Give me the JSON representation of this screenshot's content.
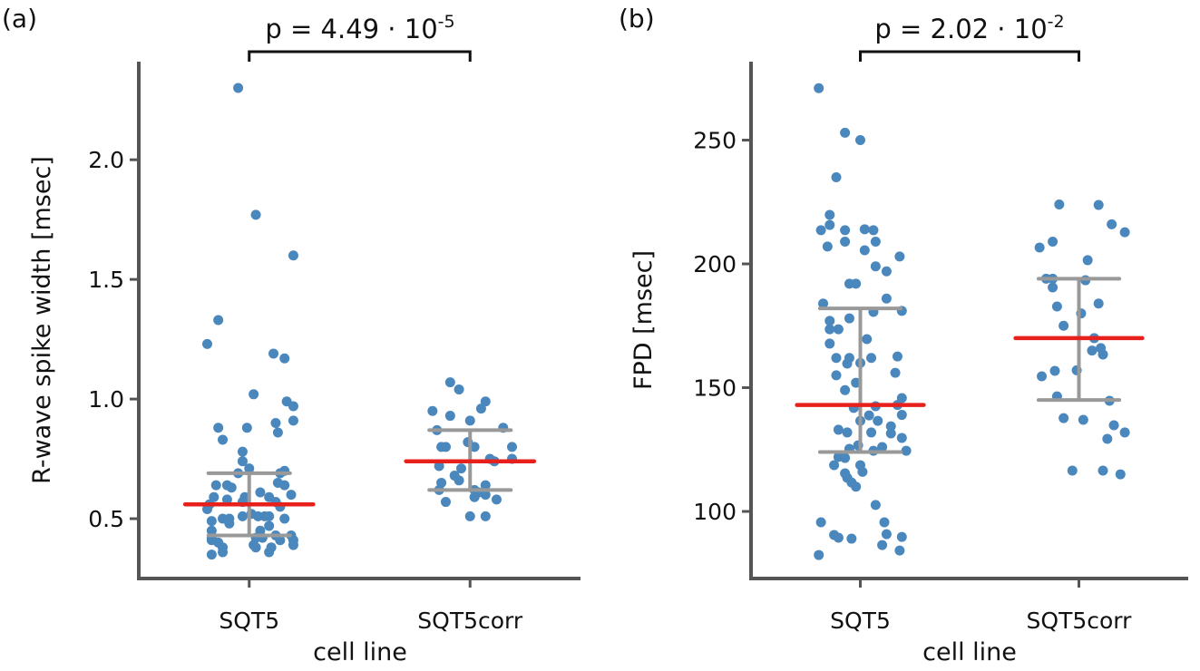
{
  "colors": {
    "points": "#4a87bd",
    "median": "#e8201c",
    "errorbar": "#999999",
    "axis": "#555555"
  },
  "chart_data": [
    {
      "type": "scatter",
      "panel_label": "(a)",
      "title": "",
      "xlabel": "cell line",
      "ylabel": "R-wave spike width [msec]",
      "categories": [
        "SQT5",
        "SQT5corr"
      ],
      "ylim": [
        0.25,
        2.41
      ],
      "yticks": [
        0.5,
        1.0,
        1.5,
        2.0
      ],
      "ytick_labels": [
        "0.5",
        "1.0",
        "1.5",
        "2.0"
      ],
      "grid": false,
      "significance": {
        "text": "p = 4.49 · 10",
        "exponent": "-5"
      },
      "summary": [
        {
          "median": 0.56,
          "lower": 0.43,
          "upper": 0.69
        },
        {
          "median": 0.74,
          "lower": 0.62,
          "upper": 0.87
        }
      ],
      "series": [
        {
          "name": "SQT5",
          "jitter_and_value": [
            [
              -0.05,
              2.3
            ],
            [
              0.03,
              1.77
            ],
            [
              0.2,
              1.6
            ],
            [
              -0.14,
              1.33
            ],
            [
              -0.19,
              1.23
            ],
            [
              0.11,
              1.19
            ],
            [
              0.16,
              1.17
            ],
            [
              0.02,
              1.02
            ],
            [
              0.17,
              0.99
            ],
            [
              0.2,
              0.97
            ],
            [
              0.2,
              0.91
            ],
            [
              0.12,
              0.9
            ],
            [
              -0.14,
              0.88
            ],
            [
              -0.01,
              0.88
            ],
            [
              0.13,
              0.86
            ],
            [
              -0.12,
              0.83
            ],
            [
              -0.03,
              0.78
            ],
            [
              -0.03,
              0.74
            ],
            [
              0,
              0.71
            ],
            [
              -0.05,
              0.69
            ],
            [
              0.16,
              0.7
            ],
            [
              0.14,
              0.69
            ],
            [
              -0.15,
              0.64
            ],
            [
              -0.1,
              0.64
            ],
            [
              -0.08,
              0.63
            ],
            [
              0.13,
              0.65
            ],
            [
              0.16,
              0.64
            ],
            [
              0.05,
              0.61
            ],
            [
              0.19,
              0.6
            ],
            [
              -0.16,
              0.59
            ],
            [
              -0.1,
              0.58
            ],
            [
              -0.02,
              0.59
            ],
            [
              -0.03,
              0.57
            ],
            [
              0.09,
              0.59
            ],
            [
              0.12,
              0.57
            ],
            [
              -0.18,
              0.56
            ],
            [
              -0.19,
              0.54
            ],
            [
              0.14,
              0.55
            ],
            [
              -0.03,
              0.51
            ],
            [
              0.01,
              0.52
            ],
            [
              0.04,
              0.51
            ],
            [
              0.07,
              0.51
            ],
            [
              0.09,
              0.51
            ],
            [
              -0.12,
              0.5
            ],
            [
              -0.09,
              0.5
            ],
            [
              0.16,
              0.5
            ],
            [
              -0.17,
              0.49
            ],
            [
              -0.09,
              0.48
            ],
            [
              0.09,
              0.47
            ],
            [
              -0.17,
              0.45
            ],
            [
              0.05,
              0.45
            ],
            [
              -0.17,
              0.42
            ],
            [
              0.03,
              0.42
            ],
            [
              0.06,
              0.42
            ],
            [
              0.12,
              0.43
            ],
            [
              0.19,
              0.43
            ],
            [
              -0.17,
              0.41
            ],
            [
              -0.14,
              0.4
            ],
            [
              0.14,
              0.41
            ],
            [
              0.2,
              0.41
            ],
            [
              -0.12,
              0.38
            ],
            [
              0.02,
              0.39
            ],
            [
              0.1,
              0.38
            ],
            [
              0.2,
              0.39
            ],
            [
              -0.12,
              0.36
            ],
            [
              -0.17,
              0.35
            ],
            [
              0.09,
              0.36
            ],
            [
              0.03,
              0.38
            ]
          ]
        },
        {
          "name": "SQT5corr",
          "jitter_and_value": [
            [
              -0.09,
              1.07
            ],
            [
              -0.05,
              1.04
            ],
            [
              0.07,
              0.99
            ],
            [
              0.05,
              0.96
            ],
            [
              -0.17,
              0.95
            ],
            [
              -0.09,
              0.93
            ],
            [
              0,
              0.91
            ],
            [
              0.15,
              0.88
            ],
            [
              -0.15,
              0.87
            ],
            [
              -0.01,
              0.82
            ],
            [
              0.02,
              0.8
            ],
            [
              -0.13,
              0.8
            ],
            [
              -0.11,
              0.8
            ],
            [
              0.19,
              0.8
            ],
            [
              0.19,
              0.75
            ],
            [
              0.09,
              0.75
            ],
            [
              0.11,
              0.74
            ],
            [
              -0.14,
              0.72
            ],
            [
              -0.04,
              0.71
            ],
            [
              -0.07,
              0.68
            ],
            [
              -0.05,
              0.66
            ],
            [
              -0.13,
              0.65
            ],
            [
              -0.14,
              0.62
            ],
            [
              0.07,
              0.64
            ],
            [
              0.02,
              0.62
            ],
            [
              0.04,
              0.61
            ],
            [
              0.07,
              0.6
            ],
            [
              0.02,
              0.59
            ],
            [
              0.12,
              0.58
            ],
            [
              -0.11,
              0.57
            ],
            [
              0,
              0.51
            ],
            [
              0.07,
              0.51
            ]
          ]
        }
      ]
    },
    {
      "type": "scatter",
      "panel_label": "(b)",
      "title": "",
      "xlabel": "cell line",
      "ylabel": "FPD [msec]",
      "categories": [
        "SQT5",
        "SQT5corr"
      ],
      "ylim": [
        72.9,
        281.7
      ],
      "yticks": [
        100,
        150,
        200,
        250
      ],
      "ytick_labels": [
        "100",
        "150",
        "200",
        "250"
      ],
      "grid": false,
      "significance": {
        "text": "p = 2.02 · 10",
        "exponent": "-2"
      },
      "summary": [
        {
          "median": 143,
          "lower": 124,
          "upper": 182
        },
        {
          "median": 170,
          "lower": 145,
          "upper": 194
        }
      ],
      "series": [
        {
          "name": "SQT5",
          "jitter_and_value": [
            [
              -0.19,
              271
            ],
            [
              -0.07,
              253
            ],
            [
              0,
              250
            ],
            [
              -0.11,
              235
            ],
            [
              -0.14,
              219.8
            ],
            [
              -0.14,
              215.7
            ],
            [
              -0.18,
              213.6
            ],
            [
              -0.07,
              213.6
            ],
            [
              0.02,
              214
            ],
            [
              0.06,
              213.6
            ],
            [
              0.07,
              209
            ],
            [
              -0.07,
              209
            ],
            [
              -0.15,
              207
            ],
            [
              0.02,
              205.5
            ],
            [
              0.18,
              203
            ],
            [
              0.07,
              199
            ],
            [
              0.12,
              197
            ],
            [
              -0.05,
              192
            ],
            [
              -0.02,
              192
            ],
            [
              0.12,
              186
            ],
            [
              -0.17,
              184
            ],
            [
              0.19,
              181
            ],
            [
              0.06,
              180.6
            ],
            [
              -0.05,
              178
            ],
            [
              -0.14,
              177
            ],
            [
              -0.14,
              173.6
            ],
            [
              -0.1,
              173.6
            ],
            [
              0.03,
              169.6
            ],
            [
              -0.14,
              167.8
            ],
            [
              -0.11,
              162
            ],
            [
              -0.05,
              162
            ],
            [
              -0.06,
              159.7
            ],
            [
              0,
              160
            ],
            [
              0.05,
              162
            ],
            [
              0.17,
              162.6
            ],
            [
              0.16,
              156
            ],
            [
              -0.11,
              155
            ],
            [
              -0.02,
              152
            ],
            [
              -0.07,
              149
            ],
            [
              0.19,
              145.8
            ],
            [
              0.17,
              143
            ],
            [
              0.07,
              142.5
            ],
            [
              -0.03,
              141.8
            ],
            [
              0.19,
              139
            ],
            [
              0.04,
              138.8
            ],
            [
              0,
              136.6
            ],
            [
              0.08,
              136.6
            ],
            [
              -0.1,
              133
            ],
            [
              -0.06,
              131.9
            ],
            [
              0.14,
              134.4
            ],
            [
              0.14,
              131.5
            ],
            [
              0.05,
              131.9
            ],
            [
              0.19,
              129.7
            ],
            [
              -0.01,
              126.7
            ],
            [
              -0.05,
              125.3
            ],
            [
              0.06,
              124.5
            ],
            [
              0.1,
              126
            ],
            [
              0.21,
              124.5
            ],
            [
              -0.1,
              122
            ],
            [
              -0.07,
              121.6
            ],
            [
              -0.12,
              118.7
            ],
            [
              0,
              118.7
            ],
            [
              0.01,
              116
            ],
            [
              -0.07,
              115.4
            ],
            [
              -0.06,
              113.6
            ],
            [
              -0.04,
              111.7
            ],
            [
              -0.02,
              110
            ],
            [
              0.07,
              102.6
            ],
            [
              -0.18,
              95.6
            ],
            [
              0.11,
              95.6
            ],
            [
              -0.12,
              90.5
            ],
            [
              -0.1,
              89.4
            ],
            [
              -0.04,
              89
            ],
            [
              0.12,
              90.8
            ],
            [
              0.19,
              89.7
            ],
            [
              0.1,
              86.4
            ],
            [
              0.18,
              84.2
            ],
            [
              -0.19,
              82.4
            ]
          ]
        },
        {
          "name": "SQT5corr",
          "jitter_and_value": [
            [
              -0.09,
              224
            ],
            [
              0.09,
              223.8
            ],
            [
              0.15,
              216
            ],
            [
              0.21,
              212.8
            ],
            [
              -0.12,
              209
            ],
            [
              -0.18,
              206.6
            ],
            [
              0.04,
              201.5
            ],
            [
              -0.15,
              194
            ],
            [
              -0.12,
              194
            ],
            [
              0.03,
              193.4
            ],
            [
              -0.12,
              190.5
            ],
            [
              0.09,
              184
            ],
            [
              -0.1,
              182.8
            ],
            [
              0.01,
              180
            ],
            [
              -0.07,
              175
            ],
            [
              0.07,
              170
            ],
            [
              0.06,
              165
            ],
            [
              0.1,
              166
            ],
            [
              0.11,
              163.4
            ],
            [
              -0.11,
              156.8
            ],
            [
              -0.17,
              154.6
            ],
            [
              -0.01,
              157
            ],
            [
              -0.1,
              146.5
            ],
            [
              0.14,
              144.7
            ],
            [
              -0.07,
              137.7
            ],
            [
              0.02,
              137
            ],
            [
              0.16,
              134.8
            ],
            [
              0.21,
              131.9
            ],
            [
              0.13,
              129.3
            ],
            [
              -0.03,
              116.5
            ],
            [
              0.11,
              116.5
            ],
            [
              0.19,
              115
            ]
          ]
        }
      ]
    }
  ]
}
